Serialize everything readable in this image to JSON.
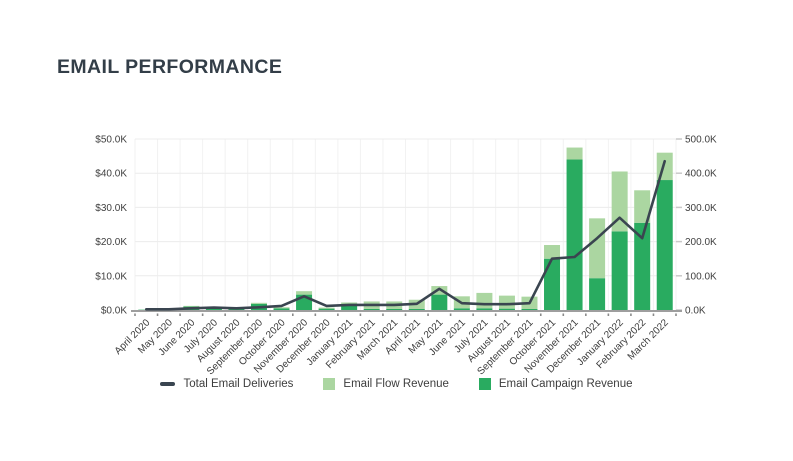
{
  "header": {
    "title": "EMAIL PERFORMANCE"
  },
  "legend": [
    {
      "label": "Total Email Deliveries",
      "marker": "line",
      "color": "#3A4550"
    },
    {
      "label": "Email Flow Revenue",
      "marker": "square",
      "color": "#ABD6A1"
    },
    {
      "label": "Email Campaign Revenue",
      "marker": "square",
      "color": "#29AB60"
    }
  ],
  "chart_data": {
    "type": "combo",
    "title": "EMAIL PERFORMANCE",
    "categories": [
      "April 2020",
      "May 2020",
      "June 2020",
      "July 2020",
      "August 2020",
      "September 2020",
      "October 2020",
      "November 2020",
      "December 2020",
      "January 2021",
      "February 2021",
      "March 2021",
      "April 2021",
      "May 2021",
      "June 2021",
      "July 2021",
      "August 2021",
      "September 2021",
      "October 2021",
      "November 2021",
      "December 2021",
      "January 2022",
      "February 2022",
      "March 2022"
    ],
    "series": [
      {
        "name": "Total Email Deliveries",
        "type": "line",
        "axis": "right",
        "color": "#3A4550",
        "values": [
          2,
          2,
          5,
          7,
          5,
          8,
          12,
          40,
          12,
          15,
          15,
          15,
          18,
          62,
          20,
          17,
          17,
          20,
          150,
          155,
          210,
          270,
          210,
          435
        ]
      },
      {
        "name": "Email Flow Revenue",
        "type": "bar",
        "stack": "top",
        "axis": "left",
        "color": "#ABD6A1",
        "values": [
          0,
          0,
          0.2,
          0.2,
          0.2,
          0.3,
          0.3,
          1.0,
          0.3,
          1.0,
          2.2,
          2.2,
          2.7,
          2.5,
          3.5,
          4.5,
          3.8,
          3.6,
          4.0,
          3.5,
          17.5,
          17.5,
          9.5,
          8.0
        ]
      },
      {
        "name": "Email Campaign Revenue",
        "type": "bar",
        "stack": "bottom",
        "axis": "left",
        "color": "#29AB60",
        "values": [
          0.1,
          0.1,
          1.0,
          0.3,
          0.3,
          1.8,
          0.5,
          4.5,
          0.4,
          1.2,
          0.3,
          0.3,
          0.3,
          4.5,
          0.5,
          0.5,
          0.4,
          0.3,
          15,
          44,
          9.3,
          23,
          25.5,
          38
        ]
      }
    ],
    "left_axis": {
      "ticks": [
        "$0.0K",
        "$10.0K",
        "$20.0K",
        "$30.0K",
        "$40.0K",
        "$50.0K"
      ],
      "range": [
        0,
        50
      ],
      "unit": "$K USD"
    },
    "right_axis": {
      "ticks": [
        "0.0K",
        "100.0K",
        "200.0K",
        "300.0K",
        "400.0K",
        "500.0K"
      ],
      "range": [
        0,
        500
      ],
      "unit": "K"
    },
    "grid": true,
    "legend_position": "bottom-center"
  }
}
